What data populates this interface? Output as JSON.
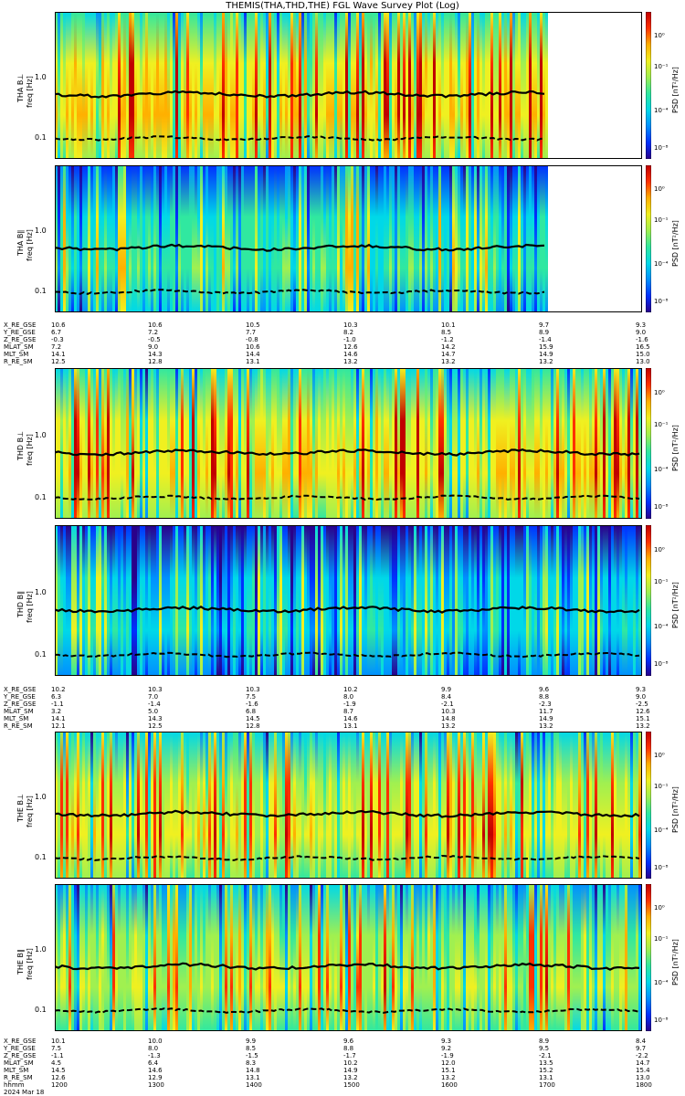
{
  "title": "THEMIS(THA,THD,THE) FGL Wave Survey Plot (Log)",
  "colors": {
    "background": "#ffffff",
    "colormap": [
      "#2a008a",
      "#0030ff",
      "#0090ff",
      "#00d8e8",
      "#30e8a0",
      "#a0f050",
      "#f0f020",
      "#ffb000",
      "#ff3000",
      "#c00000"
    ],
    "line": "#000000"
  },
  "chart_data": [
    {
      "type": "heatmap",
      "probe": "THA",
      "panels": [
        {
          "ylabel": "THA B⊥",
          "yunits": "freq [Hz]",
          "yticks": [
            "0.1",
            "1.0"
          ],
          "colorbar_label": "PSD [nT²/Hz]",
          "colorbar_ticks": [
            "10⁻⁸",
            "10⁻⁴",
            "10⁻¹",
            "10⁰"
          ],
          "data_end_fraction": 0.84,
          "level": 0.62,
          "fce_line": "solid",
          "fci_line": "dashed"
        },
        {
          "ylabel": "THA B∥",
          "yunits": "freq [Hz]",
          "yticks": [
            "0.1",
            "1.0"
          ],
          "colorbar_label": "PSD [nT²/Hz]",
          "colorbar_ticks": [
            "10⁻⁸",
            "10⁻⁴",
            "10⁻¹",
            "10⁰"
          ],
          "data_end_fraction": 0.84,
          "level": 0.38,
          "fce_line": "solid",
          "fci_line": "dashed"
        }
      ],
      "ephemeris": {
        "labels": [
          "X_RE_GSE",
          "Y_RE_GSE",
          "Z_RE_GSE",
          "MLAT_SM",
          "MLT_SM",
          "R_RE_SM"
        ],
        "columns": [
          [
            "10.6",
            "6.7",
            "-0.3",
            "7.2",
            "14.1",
            "12.5"
          ],
          [
            "10.6",
            "7.2",
            "-0.5",
            "9.0",
            "14.3",
            "12.8"
          ],
          [
            "10.5",
            "7.7",
            "-0.8",
            "10.6",
            "14.4",
            "13.1"
          ],
          [
            "10.3",
            "8.2",
            "-1.0",
            "12.6",
            "14.6",
            "13.2"
          ],
          [
            "10.1",
            "8.5",
            "-1.2",
            "14.2",
            "14.7",
            "13.2"
          ],
          [
            "9.7",
            "8.9",
            "-1.4",
            "15.9",
            "14.9",
            "13.2"
          ],
          [
            "9.3",
            "9.0",
            "-1.6",
            "16.5",
            "15.0",
            "13.0"
          ]
        ]
      }
    },
    {
      "type": "heatmap",
      "probe": "THD",
      "panels": [
        {
          "ylabel": "THD B⊥",
          "yunits": "freq [Hz]",
          "yticks": [
            "0.1",
            "1.0"
          ],
          "colorbar_label": "PSD [nT²/Hz]",
          "colorbar_ticks": [
            "10⁻⁸",
            "10⁻⁴",
            "10⁻¹",
            "10⁰"
          ],
          "data_end_fraction": 1.0,
          "level": 0.6,
          "fce_line": "solid",
          "fci_line": "dashed"
        },
        {
          "ylabel": "THD B∥",
          "yunits": "freq [Hz]",
          "yticks": [
            "0.1",
            "1.0"
          ],
          "colorbar_label": "PSD [nT²/Hz]",
          "colorbar_ticks": [
            "10⁻⁸",
            "10⁻⁴",
            "10⁻¹",
            "10⁰"
          ],
          "data_end_fraction": 1.0,
          "level": 0.3,
          "fce_line": "solid",
          "fci_line": "dashed"
        }
      ],
      "ephemeris": {
        "labels": [
          "X_RE_GSE",
          "Y_RE_GSE",
          "Z_RE_GSE",
          "MLAT_SM",
          "MLT_SM",
          "R_RE_SM"
        ],
        "columns": [
          [
            "10.2",
            "6.3",
            "-1.1",
            "3.2",
            "14.1",
            "12.1"
          ],
          [
            "10.3",
            "7.0",
            "-1.4",
            "5.0",
            "14.3",
            "12.5"
          ],
          [
            "10.3",
            "7.5",
            "-1.6",
            "6.8",
            "14.5",
            "12.8"
          ],
          [
            "10.2",
            "8.0",
            "-1.9",
            "8.7",
            "14.6",
            "13.1"
          ],
          [
            "9.9",
            "8.4",
            "-2.1",
            "10.3",
            "14.8",
            "13.2"
          ],
          [
            "9.6",
            "8.8",
            "-2.3",
            "11.7",
            "14.9",
            "13.2"
          ],
          [
            "9.3",
            "9.0",
            "-2.5",
            "12.6",
            "15.1",
            "13.2"
          ]
        ]
      }
    },
    {
      "type": "heatmap",
      "probe": "THE",
      "panels": [
        {
          "ylabel": "THE B⊥",
          "yunits": "freq [Hz]",
          "yticks": [
            "0.1",
            "1.0"
          ],
          "colorbar_label": "PSD [nT²/Hz]",
          "colorbar_ticks": [
            "10⁻⁸",
            "10⁻⁴",
            "10⁻¹",
            "10⁰"
          ],
          "data_end_fraction": 1.0,
          "level": 0.55,
          "fce_line": "solid",
          "fci_line": "dashed"
        },
        {
          "ylabel": "THE B∥",
          "yunits": "freq [Hz]",
          "yticks": [
            "0.1",
            "1.0"
          ],
          "colorbar_label": "PSD [nT²/Hz]",
          "colorbar_ticks": [
            "10⁻⁸",
            "10⁻⁴",
            "10⁻¹",
            "10⁰"
          ],
          "data_end_fraction": 1.0,
          "level": 0.5,
          "fce_line": "solid",
          "fci_line": "dashed"
        }
      ],
      "ephemeris": {
        "labels": [
          "X_RE_GSE",
          "Y_RE_GSE",
          "Z_RE_GSE",
          "MLAT_SM",
          "MLT_SM",
          "R_RE_SM",
          "hhmm",
          "2024 Mar 18"
        ],
        "columns": [
          [
            "10.1",
            "7.5",
            "-1.1",
            "4.5",
            "14.5",
            "12.6",
            "1200",
            ""
          ],
          [
            "10.0",
            "8.0",
            "-1.3",
            "6.4",
            "14.6",
            "12.9",
            "1300",
            ""
          ],
          [
            "9.9",
            "8.5",
            "-1.5",
            "8.3",
            "14.8",
            "13.1",
            "1400",
            ""
          ],
          [
            "9.6",
            "8.8",
            "-1.7",
            "10.2",
            "14.9",
            "13.2",
            "1500",
            ""
          ],
          [
            "9.3",
            "9.2",
            "-1.9",
            "12.0",
            "15.1",
            "13.2",
            "1600",
            ""
          ],
          [
            "8.9",
            "9.5",
            "-2.1",
            "13.5",
            "15.2",
            "13.1",
            "1700",
            ""
          ],
          [
            "8.4",
            "9.7",
            "-2.2",
            "14.7",
            "15.4",
            "13.0",
            "1800",
            ""
          ]
        ]
      }
    }
  ]
}
